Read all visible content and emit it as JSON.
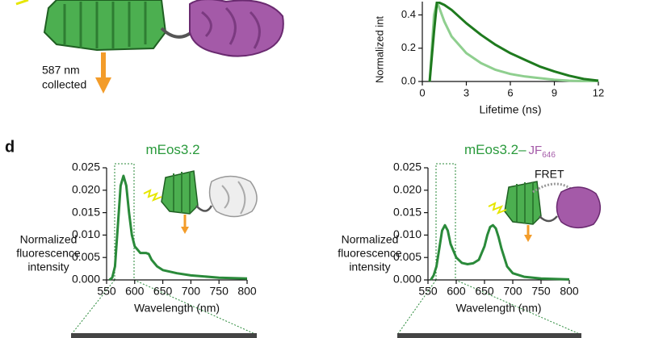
{
  "panel_label": "d",
  "annotation_lines": [
    "587 nm",
    "collected"
  ],
  "chart_data": [
    {
      "type": "line",
      "xlabel": "Lifetime (ns)",
      "ylabel": "Normalized int",
      "x": [
        0.5,
        0.8,
        1.0,
        1.5,
        2,
        3,
        4,
        5,
        6,
        7,
        8,
        9,
        10,
        11,
        12
      ],
      "series": [
        {
          "color": "#8fcf8f",
          "values": [
            0,
            0.4,
            0.48,
            0.36,
            0.27,
            0.17,
            0.11,
            0.07,
            0.045,
            0.03,
            0.02,
            0.01,
            0.005,
            0.002,
            0
          ]
        },
        {
          "color": "#1e7a1e",
          "values": [
            0,
            0.3,
            0.48,
            0.46,
            0.43,
            0.35,
            0.28,
            0.22,
            0.17,
            0.13,
            0.09,
            0.06,
            0.035,
            0.015,
            0.005
          ]
        }
      ],
      "xlim": [
        0,
        12
      ],
      "ylim": [
        0,
        0.48
      ],
      "xticks": [
        0,
        3,
        6,
        9,
        12
      ],
      "yticks": [
        {
          "value": 0,
          "label": "0.0"
        },
        0.2,
        0.4
      ]
    },
    {
      "type": "line",
      "title": "mEos3.2",
      "xlabel": "Wavelength (nm)",
      "ylabel_lines": [
        "Normalized",
        "fluorescence",
        "intensity"
      ],
      "x": [
        555,
        560,
        565,
        570,
        575,
        580,
        585,
        590,
        595,
        600,
        610,
        620,
        625,
        630,
        640,
        650,
        675,
        700,
        750,
        800
      ],
      "series": [
        {
          "color": "#2a8a3a",
          "values": [
            0,
            0.0005,
            0.003,
            0.012,
            0.021,
            0.0232,
            0.021,
            0.015,
            0.01,
            0.0075,
            0.006,
            0.006,
            0.0058,
            0.0045,
            0.003,
            0.0022,
            0.0015,
            0.001,
            0.0005,
            0.0003
          ]
        }
      ],
      "xlim": [
        550,
        800
      ],
      "ylim": [
        0,
        0.025
      ],
      "xticks": [
        550,
        600,
        650,
        700,
        750,
        800
      ],
      "yticks": [
        {
          "value": 0,
          "label": "0.000"
        },
        0.005,
        {
          "value": 0.01,
          "label": "0.010"
        },
        0.015,
        {
          "value": 0.02,
          "label": "0.020"
        },
        0.025
      ]
    },
    {
      "type": "line",
      "title": "mEos3.2–",
      "title_suffix": "JF",
      "title_subscript": "646",
      "annotation": "FRET",
      "xlabel": "Wavelength (nm)",
      "ylabel_lines": [
        "Normalized",
        "fluorescence",
        "intensity"
      ],
      "x": [
        555,
        560,
        565,
        570,
        575,
        580,
        585,
        590,
        600,
        610,
        620,
        630,
        640,
        650,
        655,
        660,
        665,
        670,
        675,
        680,
        690,
        700,
        720,
        750,
        800
      ],
      "series": [
        {
          "color": "#2a8a3a",
          "values": [
            0,
            0.001,
            0.003,
            0.007,
            0.011,
            0.0122,
            0.011,
            0.008,
            0.005,
            0.0038,
            0.0035,
            0.0037,
            0.0045,
            0.0075,
            0.01,
            0.0118,
            0.0122,
            0.0115,
            0.0095,
            0.007,
            0.003,
            0.0015,
            0.0007,
            0.0003,
            0.0001
          ]
        }
      ],
      "xlim": [
        550,
        800
      ],
      "ylim": [
        0,
        0.025
      ],
      "xticks": [
        550,
        600,
        650,
        700,
        750,
        800
      ],
      "yticks": [
        {
          "value": 0,
          "label": "0.000"
        },
        0.005,
        {
          "value": 0.01,
          "label": "0.010"
        },
        0.015,
        {
          "value": 0.02,
          "label": "0.020"
        },
        0.025
      ]
    }
  ]
}
